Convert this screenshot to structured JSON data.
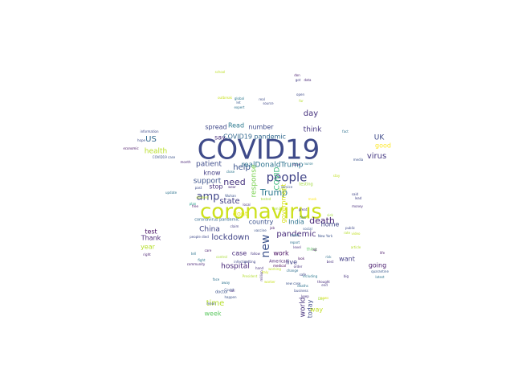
{
  "words": [
    {
      "text": "COVID19",
      "color": "#3e4a89"
    },
    {
      "text": "coronavirus",
      "color": "#cde11d"
    },
    {
      "text": "people",
      "color": "#414487"
    },
    {
      "text": "new",
      "color": "#3b528b"
    },
    {
      "text": "amp",
      "color": "#404688"
    },
    {
      "text": "Trump",
      "color": "#2a788e"
    },
    {
      "text": "death",
      "color": "#482475"
    },
    {
      "text": "need",
      "color": "#46337e"
    },
    {
      "text": "state",
      "color": "#433e85"
    },
    {
      "text": "help",
      "color": "#3b528b"
    },
    {
      "text": "pandemic",
      "color": "#472c7a"
    },
    {
      "text": "lockdown",
      "color": "#414487"
    },
    {
      "text": "realDonaldTrump",
      "color": "#2c728e"
    },
    {
      "text": "COVID19 pandemic",
      "color": "#31688e"
    },
    {
      "text": "support",
      "color": "#3b528b"
    },
    {
      "text": "patient",
      "color": "#3e4c8a"
    },
    {
      "text": "China",
      "color": "#404588"
    },
    {
      "text": "hospital",
      "color": "#482878"
    },
    {
      "text": "time",
      "color": "#b5de2b"
    },
    {
      "text": "day",
      "color": "#46327e"
    },
    {
      "text": "think",
      "color": "#453781"
    },
    {
      "text": "spread",
      "color": "#3f4889"
    },
    {
      "text": "say",
      "color": "#472d7b"
    },
    {
      "text": "US",
      "color": "#31688e"
    },
    {
      "text": "health",
      "color": "#b8de29"
    },
    {
      "text": "UK",
      "color": "#3e4989"
    },
    {
      "text": "good",
      "color": "#fde725"
    },
    {
      "text": "virus",
      "color": "#453882"
    },
    {
      "text": "response",
      "color": "#7ad151"
    },
    {
      "text": "government",
      "color": "#d8e219"
    },
    {
      "text": "number",
      "color": "#3e4a89"
    },
    {
      "text": "Read",
      "color": "#2a788e"
    },
    {
      "text": "know",
      "color": "#433d84"
    },
    {
      "text": "stop",
      "color": "#46317e"
    },
    {
      "text": "dont",
      "color": "#e5e419"
    },
    {
      "text": "COVID",
      "color": "#35b779"
    },
    {
      "text": "country",
      "color": "#3b528b"
    },
    {
      "text": "India",
      "color": "#2c728e"
    },
    {
      "text": "home",
      "color": "#3f4788"
    },
    {
      "text": "case",
      "color": "#472a7a"
    },
    {
      "text": "work",
      "color": "#470e61"
    },
    {
      "text": "live",
      "color": "#404387"
    },
    {
      "text": "want",
      "color": "#433e85"
    },
    {
      "text": "going",
      "color": "#481c6e"
    },
    {
      "text": "test",
      "color": "#471063"
    },
    {
      "text": "Thank",
      "color": "#482475"
    },
    {
      "text": "year",
      "color": "#b5de2b"
    },
    {
      "text": "week",
      "color": "#5ec962"
    },
    {
      "text": "world",
      "color": "#46327e"
    },
    {
      "text": "today",
      "color": "#3e4989"
    },
    {
      "text": "way",
      "color": "#c2df23"
    },
    {
      "text": "testing",
      "color": "#9fda3a"
    },
    {
      "text": "school",
      "color": "#bddf26"
    },
    {
      "text": "doctor",
      "color": "#3b528b"
    },
    {
      "text": "right",
      "color": "#481f70"
    },
    {
      "text": "quarantine",
      "color": "#38588c"
    },
    {
      "text": "latest",
      "color": "#2c728e"
    },
    {
      "text": "life",
      "color": "#481567"
    },
    {
      "text": "thing",
      "color": "#5ec962"
    },
    {
      "text": "month",
      "color": "#482475"
    },
    {
      "text": "update",
      "color": "#2c728e"
    },
    {
      "text": "said",
      "color": "#404588"
    },
    {
      "text": "money",
      "color": "#472c7a"
    },
    {
      "text": "crisis",
      "color": "#b5de2b"
    },
    {
      "text": "social",
      "color": "#38588c"
    },
    {
      "text": "mask",
      "color": "#fde725"
    },
    {
      "text": "infection",
      "color": "#3f4889"
    },
    {
      "text": "American",
      "color": "#481d6f"
    },
    {
      "text": "fight",
      "color": "#2a788e"
    },
    {
      "text": "outbreak",
      "color": "#c8e020"
    },
    {
      "text": "COVID19 case",
      "color": "#3b528b"
    },
    {
      "text": "coronavirus pandemic",
      "color": "#31688e"
    },
    {
      "text": "getting",
      "color": "#404387"
    },
    {
      "text": "report",
      "color": "#2d708e"
    },
    {
      "text": "Italy",
      "color": "#d2e21b"
    },
    {
      "text": "great",
      "color": "#472f7d"
    },
    {
      "text": "public",
      "color": "#3f4889"
    },
    {
      "text": "family",
      "color": "#a8db34"
    },
    {
      "text": "million",
      "color": "#472e7c"
    },
    {
      "text": "medical",
      "color": "#440154"
    },
    {
      "text": "vaccine",
      "color": "#3b528b"
    },
    {
      "text": "lot",
      "color": "#450559"
    },
    {
      "text": "best",
      "color": "#46307e"
    },
    {
      "text": "risk",
      "color": "#2e6e8e"
    },
    {
      "text": "follow",
      "color": "#453581"
    },
    {
      "text": "care",
      "color": "#481b6d"
    },
    {
      "text": "close",
      "color": "#2a768e"
    },
    {
      "text": "hope",
      "color": "#3e4c8a"
    },
    {
      "text": "look",
      "color": "#471063"
    },
    {
      "text": "plan",
      "color": "#1f9e89"
    },
    {
      "text": "let",
      "color": "#38588c"
    },
    {
      "text": "global",
      "color": "#2a778e"
    },
    {
      "text": "Wuhan",
      "color": "#3b528b"
    },
    {
      "text": "student",
      "color": "#b8de29"
    },
    {
      "text": "local",
      "color": "#472f7d"
    },
    {
      "text": "deaths",
      "color": "#2c728e"
    },
    {
      "text": "business",
      "color": "#3e4c8a"
    },
    {
      "text": "community",
      "color": "#482475"
    },
    {
      "text": "stay",
      "color": "#c0df25"
    },
    {
      "text": "issue",
      "color": "#46337e"
    },
    {
      "text": "far",
      "color": "#b5de2b"
    },
    {
      "text": "service",
      "color": "#3b528b"
    },
    {
      "text": "first",
      "color": "#2e6e8e"
    },
    {
      "text": "tested",
      "color": "#a2da37"
    },
    {
      "text": "keep",
      "color": "#46307e"
    },
    {
      "text": "safe",
      "color": "#3f4889"
    },
    {
      "text": "nurse",
      "color": "#2a788e"
    },
    {
      "text": "Day",
      "color": "#a0da39"
    },
    {
      "text": "don",
      "color": "#481d6f"
    },
    {
      "text": "got",
      "color": "#433e85"
    },
    {
      "text": "open",
      "color": "#3e4a89"
    },
    {
      "text": "fact",
      "color": "#2d708e"
    },
    {
      "text": "thought",
      "color": "#472a7a"
    },
    {
      "text": "President",
      "color": "#b2dd2d"
    },
    {
      "text": "new case",
      "color": "#3b528b"
    },
    {
      "text": "worker",
      "color": "#c8e020"
    },
    {
      "text": "data",
      "color": "#482576"
    },
    {
      "text": "away",
      "color": "#2c728e"
    },
    {
      "text": "lead",
      "color": "#404387"
    },
    {
      "text": "media",
      "color": "#3b528b"
    },
    {
      "text": "economic",
      "color": "#471063"
    },
    {
      "text": "information",
      "color": "#3e4989"
    },
    {
      "text": "big",
      "color": "#46317e"
    },
    {
      "text": "article",
      "color": "#b5de2b"
    },
    {
      "text": "free",
      "color": "#481769"
    },
    {
      "text": "change",
      "color": "#2e6e8e"
    },
    {
      "text": "real",
      "color": "#3e4c8a"
    },
    {
      "text": "level",
      "color": "#472c7a"
    },
    {
      "text": "mean",
      "color": "#3b528b"
    },
    {
      "text": "end",
      "color": "#453781"
    },
    {
      "text": "expert",
      "color": "#2c728e"
    },
    {
      "text": "video",
      "color": "#c2df23"
    },
    {
      "text": "claim",
      "color": "#433e85"
    },
    {
      "text": "control",
      "color": "#a8db34"
    },
    {
      "text": "happen",
      "color": "#3b528b"
    },
    {
      "text": "job",
      "color": "#481f70"
    },
    {
      "text": "including",
      "color": "#2a788e"
    },
    {
      "text": "news",
      "color": "#d8e219"
    },
    {
      "text": "hand",
      "color": "#46307e"
    },
    {
      "text": "source",
      "color": "#3f4889"
    },
    {
      "text": "come",
      "color": "#2c728e"
    },
    {
      "text": "call",
      "color": "#472f7d"
    },
    {
      "text": "rate",
      "color": "#b5de2b"
    },
    {
      "text": "New York",
      "color": "#3b528b"
    },
    {
      "text": "people died",
      "color": "#3e4989"
    },
    {
      "text": "sick",
      "color": "#a2da37"
    },
    {
      "text": "wear",
      "color": "#472a7a"
    },
    {
      "text": "face",
      "color": "#2d708e"
    },
    {
      "text": "Covid",
      "color": "#3b528b"
    },
    {
      "text": "working",
      "color": "#c0df25"
    },
    {
      "text": "order",
      "color": "#46337e"
    },
    {
      "text": "tell",
      "color": "#2c728e"
    },
    {
      "text": "past",
      "color": "#3e4c8a"
    }
  ]
}
